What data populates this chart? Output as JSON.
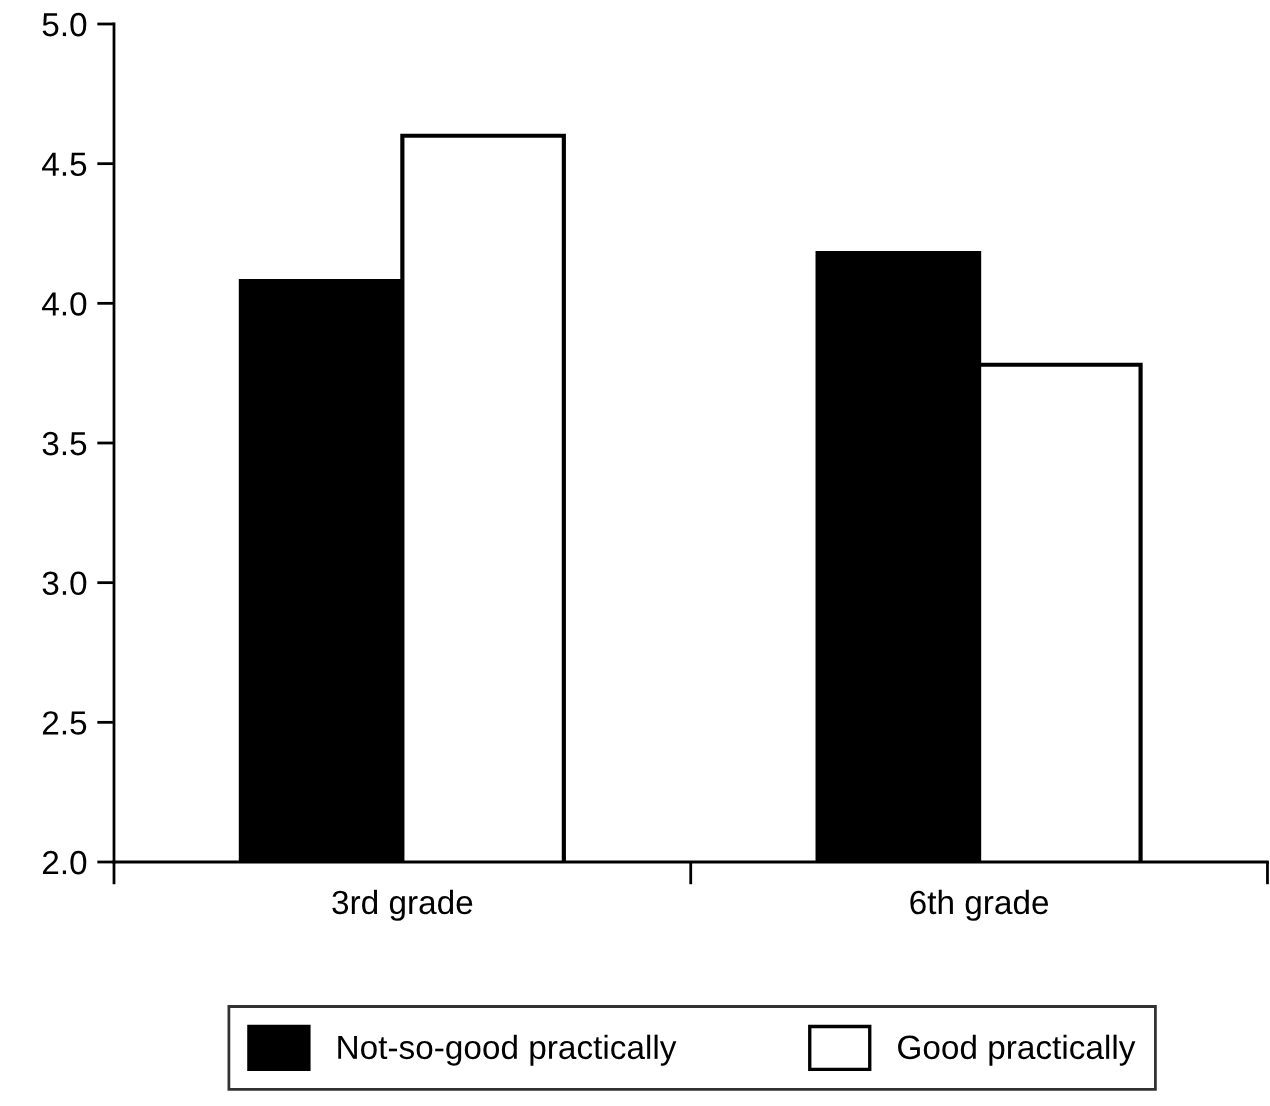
{
  "chart_data": {
    "type": "bar",
    "categories": [
      "3rd grade",
      "6th grade"
    ],
    "series": [
      {
        "name": "Not-so-good practically",
        "color": "#000000",
        "values": [
          4.08,
          4.18
        ]
      },
      {
        "name": "Good practically",
        "color": "#ffffff",
        "values": [
          4.6,
          3.78
        ]
      }
    ],
    "ylim": [
      2.0,
      5.0
    ],
    "yticks": [
      {
        "value": 2.0,
        "label": "2.0"
      },
      {
        "value": 2.5,
        "label": "2.5"
      },
      {
        "value": 3.0,
        "label": "3.0"
      },
      {
        "value": 3.5,
        "label": "3.5"
      },
      {
        "value": 4.0,
        "label": "4.0"
      },
      {
        "value": 4.5,
        "label": "4.5"
      },
      {
        "value": 5.0,
        "label": "5.0"
      }
    ],
    "grid": false,
    "legend": "bottom"
  }
}
